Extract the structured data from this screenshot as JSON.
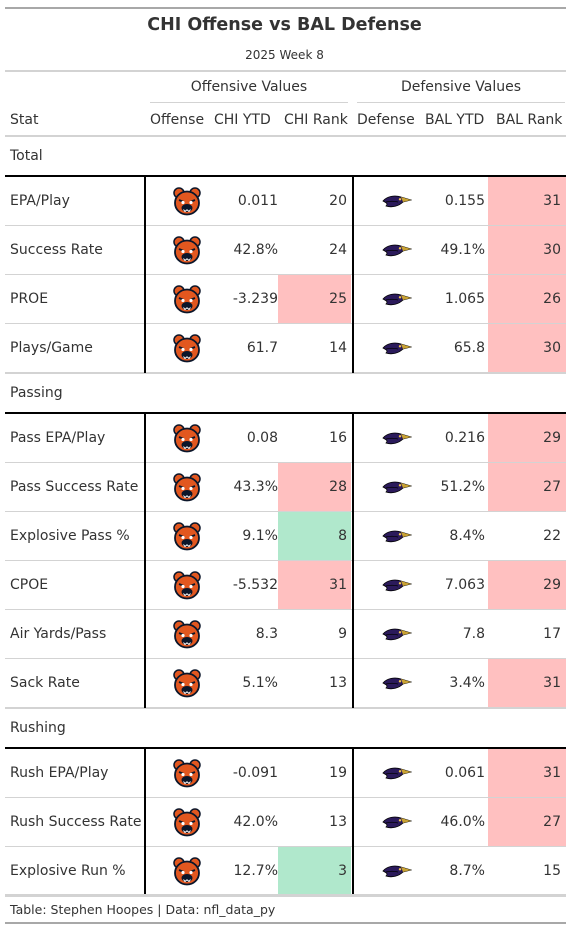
{
  "title": "CHI Offense vs BAL Defense",
  "subtitle": "2025 Week 8",
  "spanners": {
    "offense": "Offensive Values",
    "defense": "Defensive Values"
  },
  "columns": {
    "stat": "Stat",
    "offense": "Offense",
    "chi_ytd": "CHI YTD",
    "chi_rank": "CHI Rank",
    "defense": "Defense",
    "bal_ytd": "BAL YTD",
    "bal_rank": "BAL Rank"
  },
  "icons": {
    "offense_logo": "chicago-bears-logo-icon",
    "defense_logo": "baltimore-ravens-logo-icon"
  },
  "colors": {
    "bad_rank": "#ffc0c0",
    "good_rank": "#b0e8cc",
    "bears_orange": "#e2571f",
    "bears_navy": "#0b162a",
    "ravens_purple": "#2b1a5b"
  },
  "chart_data": {
    "type": "table",
    "groups": [
      {
        "name": "Total",
        "rows": [
          {
            "stat": "EPA/Play",
            "chi_ytd": "0.011",
            "chi_rank": "20",
            "chi_hl": "",
            "bal_ytd": "0.155",
            "bal_rank": "31",
            "bal_hl": "bad"
          },
          {
            "stat": "Success Rate",
            "chi_ytd": "42.8%",
            "chi_rank": "24",
            "chi_hl": "",
            "bal_ytd": "49.1%",
            "bal_rank": "30",
            "bal_hl": "bad"
          },
          {
            "stat": "PROE",
            "chi_ytd": "-3.239",
            "chi_rank": "25",
            "chi_hl": "bad",
            "bal_ytd": "1.065",
            "bal_rank": "26",
            "bal_hl": "bad"
          },
          {
            "stat": "Plays/Game",
            "chi_ytd": "61.7",
            "chi_rank": "14",
            "chi_hl": "",
            "bal_ytd": "65.8",
            "bal_rank": "30",
            "bal_hl": "bad"
          }
        ]
      },
      {
        "name": "Passing",
        "rows": [
          {
            "stat": "Pass EPA/Play",
            "chi_ytd": "0.08",
            "chi_rank": "16",
            "chi_hl": "",
            "bal_ytd": "0.216",
            "bal_rank": "29",
            "bal_hl": "bad"
          },
          {
            "stat": "Pass Success Rate",
            "chi_ytd": "43.3%",
            "chi_rank": "28",
            "chi_hl": "bad",
            "bal_ytd": "51.2%",
            "bal_rank": "27",
            "bal_hl": "bad"
          },
          {
            "stat": "Explosive Pass %",
            "chi_ytd": "9.1%",
            "chi_rank": "8",
            "chi_hl": "good",
            "bal_ytd": "8.4%",
            "bal_rank": "22",
            "bal_hl": ""
          },
          {
            "stat": "CPOE",
            "chi_ytd": "-5.532",
            "chi_rank": "31",
            "chi_hl": "bad",
            "bal_ytd": "7.063",
            "bal_rank": "29",
            "bal_hl": "bad"
          },
          {
            "stat": "Air Yards/Pass",
            "chi_ytd": "8.3",
            "chi_rank": "9",
            "chi_hl": "",
            "bal_ytd": "7.8",
            "bal_rank": "17",
            "bal_hl": ""
          },
          {
            "stat": "Sack Rate",
            "chi_ytd": "5.1%",
            "chi_rank": "13",
            "chi_hl": "",
            "bal_ytd": "3.4%",
            "bal_rank": "31",
            "bal_hl": "bad"
          }
        ]
      },
      {
        "name": "Rushing",
        "rows": [
          {
            "stat": "Rush EPA/Play",
            "chi_ytd": "-0.091",
            "chi_rank": "19",
            "chi_hl": "",
            "bal_ytd": "0.061",
            "bal_rank": "31",
            "bal_hl": "bad"
          },
          {
            "stat": "Rush Success Rate",
            "chi_ytd": "42.0%",
            "chi_rank": "13",
            "chi_hl": "",
            "bal_ytd": "46.0%",
            "bal_rank": "27",
            "bal_hl": "bad"
          },
          {
            "stat": "Explosive Run %",
            "chi_ytd": "12.7%",
            "chi_rank": "3",
            "chi_hl": "good",
            "bal_ytd": "8.7%",
            "bal_rank": "15",
            "bal_hl": ""
          }
        ]
      }
    ]
  },
  "footer": "Table: Stephen Hoopes | Data: nfl_data_py"
}
